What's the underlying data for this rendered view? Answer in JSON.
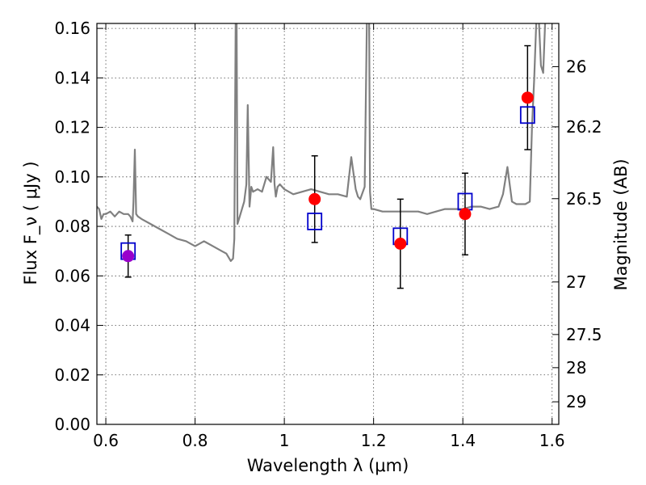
{
  "chart_data": {
    "type": "scatter",
    "title": "",
    "xlabel": "Wavelength  λ (μm)",
    "ylabel": "Flux  F_ν  ( μJy )",
    "y2label": "Magnitude (AB)",
    "xlim": [
      0.58,
      1.615
    ],
    "ylim": [
      0.0,
      0.162
    ],
    "grid": true,
    "x_ticks": [
      0.6,
      0.8,
      1.0,
      1.2,
      1.4,
      1.6
    ],
    "x_tick_labels": [
      "0.6",
      "0.8",
      "1",
      "1.2",
      "1.4",
      "1.6"
    ],
    "y_ticks": [
      0.0,
      0.02,
      0.04,
      0.06,
      0.08,
      0.1,
      0.12,
      0.14,
      0.16
    ],
    "y_tick_labels": [
      "0.00",
      "0.02",
      "0.04",
      "0.06",
      "0.08",
      "0.10",
      "0.12",
      "0.14",
      "0.16"
    ],
    "y2_tick_labels": [
      "26",
      "26.2",
      "26.5",
      "27",
      "27.5",
      "28",
      "29"
    ],
    "y2_tick_mags": [
      26.0,
      26.2,
      26.5,
      27.0,
      27.5,
      28.0,
      29.0
    ],
    "model_spectrum": {
      "color": "#808080",
      "x": [
        0.58,
        0.585,
        0.59,
        0.595,
        0.6,
        0.61,
        0.62,
        0.63,
        0.64,
        0.65,
        0.655,
        0.66,
        0.662,
        0.665,
        0.668,
        0.672,
        0.68,
        0.7,
        0.72,
        0.74,
        0.76,
        0.78,
        0.8,
        0.82,
        0.84,
        0.86,
        0.87,
        0.88,
        0.885,
        0.888,
        0.891,
        0.893,
        0.895,
        0.9,
        0.91,
        0.915,
        0.918,
        0.922,
        0.926,
        0.93,
        0.94,
        0.95,
        0.96,
        0.97,
        0.975,
        0.978,
        0.981,
        0.985,
        0.99,
        1.0,
        1.02,
        1.04,
        1.06,
        1.08,
        1.1,
        1.12,
        1.14,
        1.15,
        1.16,
        1.165,
        1.17,
        1.18,
        1.185,
        1.188,
        1.19,
        1.192,
        1.195,
        1.2,
        1.22,
        1.24,
        1.26,
        1.28,
        1.3,
        1.32,
        1.34,
        1.36,
        1.38,
        1.4,
        1.42,
        1.44,
        1.46,
        1.48,
        1.49,
        1.5,
        1.51,
        1.52,
        1.53,
        1.54,
        1.55,
        1.555,
        1.56,
        1.565,
        1.57,
        1.575,
        1.58,
        1.585,
        1.59,
        1.6,
        1.615
      ],
      "y": [
        0.088,
        0.087,
        0.083,
        0.085,
        0.085,
        0.086,
        0.084,
        0.086,
        0.085,
        0.085,
        0.084,
        0.082,
        0.09,
        0.111,
        0.085,
        0.084,
        0.083,
        0.081,
        0.079,
        0.077,
        0.075,
        0.074,
        0.072,
        0.074,
        0.072,
        0.07,
        0.069,
        0.066,
        0.067,
        0.075,
        0.165,
        0.165,
        0.081,
        0.084,
        0.09,
        0.097,
        0.129,
        0.088,
        0.096,
        0.094,
        0.095,
        0.094,
        0.1,
        0.098,
        0.112,
        0.097,
        0.092,
        0.096,
        0.097,
        0.095,
        0.093,
        0.094,
        0.095,
        0.094,
        0.093,
        0.093,
        0.092,
        0.108,
        0.095,
        0.092,
        0.091,
        0.096,
        0.165,
        0.165,
        0.165,
        0.094,
        0.087,
        0.087,
        0.086,
        0.086,
        0.086,
        0.086,
        0.086,
        0.085,
        0.086,
        0.087,
        0.087,
        0.087,
        0.088,
        0.088,
        0.087,
        0.088,
        0.093,
        0.104,
        0.09,
        0.089,
        0.089,
        0.089,
        0.09,
        0.12,
        0.14,
        0.165,
        0.165,
        0.145,
        0.142,
        0.165,
        0.165,
        0.165,
        0.165
      ]
    },
    "series": [
      {
        "marker": "open-square",
        "color": "#0000cc",
        "x": [
          0.65,
          1.068,
          1.26,
          1.405,
          1.545
        ],
        "y": [
          0.07,
          0.082,
          0.076,
          0.09,
          0.125
        ]
      },
      {
        "marker": "filled-circle",
        "colors": [
          "#9900cc",
          "#ff0000",
          "#ff0000",
          "#ff0000",
          "#ff0000"
        ],
        "x": [
          0.65,
          1.068,
          1.26,
          1.405,
          1.545
        ],
        "y": [
          0.068,
          0.091,
          0.073,
          0.085,
          0.132
        ],
        "yerr": [
          0.0085,
          0.0175,
          0.018,
          0.0165,
          0.021
        ]
      }
    ]
  }
}
